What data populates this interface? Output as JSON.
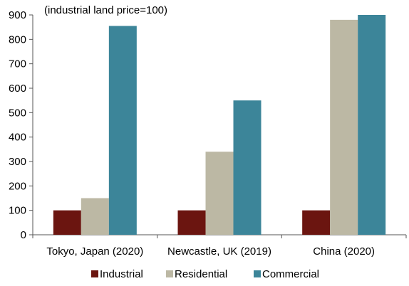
{
  "chart_data": {
    "type": "bar",
    "subtitle": "(industrial land price=100)",
    "categories": [
      "Tokyo, Japan (2020)",
      "Newcastle, UK (2019)",
      "China (2020)"
    ],
    "series": [
      {
        "name": "Industrial",
        "values": [
          100,
          100,
          100
        ],
        "color": "#6b1510"
      },
      {
        "name": "Residential",
        "values": [
          150,
          340,
          880
        ],
        "color": "#bcb8a4"
      },
      {
        "name": "Commercial",
        "values": [
          855,
          550,
          900
        ],
        "color": "#3c8599"
      }
    ],
    "ylim": [
      0,
      900
    ],
    "yticks": [
      0,
      100,
      200,
      300,
      400,
      500,
      600,
      700,
      800,
      900
    ],
    "ytick_labels": [
      "0",
      "100",
      "200",
      "300",
      "400",
      "500",
      "600",
      "700",
      "800",
      "900"
    ],
    "grid": false,
    "legend_position": "bottom"
  }
}
